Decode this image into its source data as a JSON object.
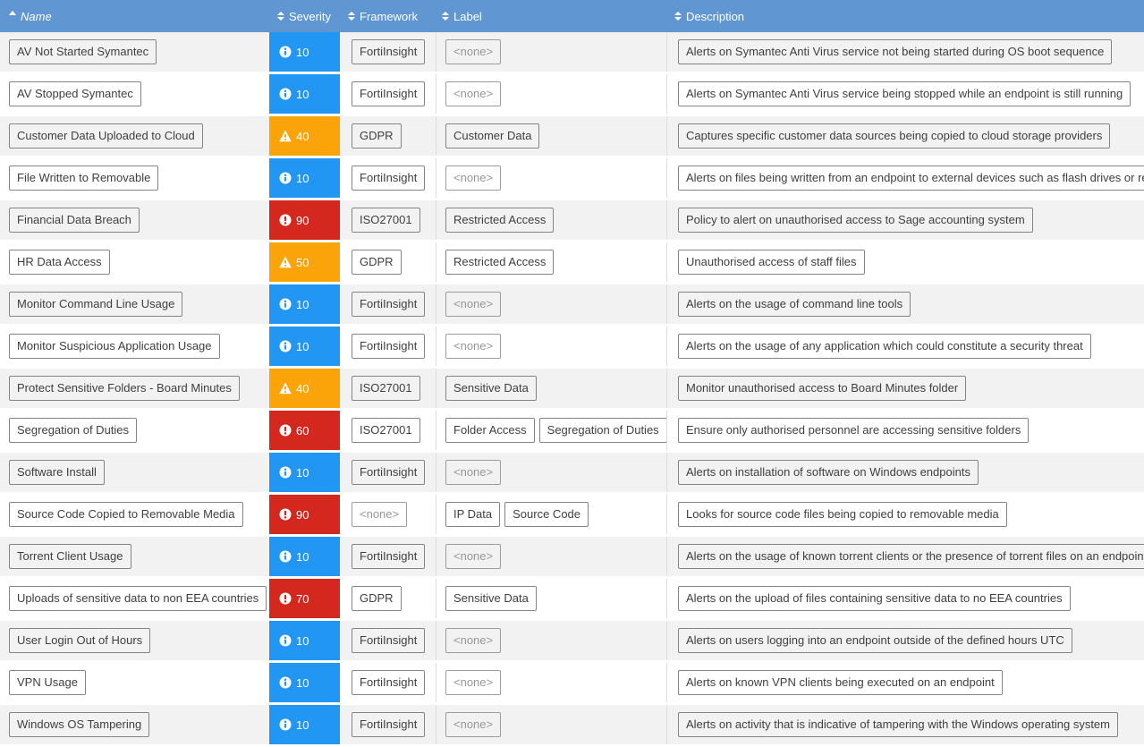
{
  "colors": {
    "header_bg": "#6097d2",
    "severity_info": "#2196f3",
    "severity_warning": "#fba40a",
    "severity_critical": "#d4271e",
    "row_alt_bg": "#f2f2f2",
    "row_bg": "#ffffff"
  },
  "icons": {
    "info": "info-circle-icon",
    "warning": "warning-triangle-icon",
    "critical": "exclamation-circle-icon",
    "sortable": "sort-icon",
    "sorted_asc": "caret-up-icon"
  },
  "table": {
    "none_placeholder": "<none>",
    "columns": [
      {
        "key": "name",
        "label": "Name",
        "sorted": "asc"
      },
      {
        "key": "severity",
        "label": "Severity"
      },
      {
        "key": "framework",
        "label": "Framework"
      },
      {
        "key": "label",
        "label": "Label"
      },
      {
        "key": "description",
        "label": "Description"
      }
    ],
    "rows": [
      {
        "name": "AV Not Started Symantec",
        "severity": {
          "value": 10,
          "level": "info"
        },
        "framework": "FortiInsight",
        "labels": [],
        "description": "Alerts on Symantec Anti Virus service not being started during OS boot sequence"
      },
      {
        "name": "AV Stopped Symantec",
        "severity": {
          "value": 10,
          "level": "info"
        },
        "framework": "FortiInsight",
        "labels": [],
        "description": "Alerts on Symantec Anti Virus service being stopped while an endpoint is still running"
      },
      {
        "name": "Customer Data Uploaded to Cloud",
        "severity": {
          "value": 40,
          "level": "warning"
        },
        "framework": "GDPR",
        "labels": [
          "Customer Data"
        ],
        "description": "Captures specific customer data sources being copied to cloud storage providers"
      },
      {
        "name": "File Written to Removable",
        "severity": {
          "value": 10,
          "level": "info"
        },
        "framework": "FortiInsight",
        "labels": [],
        "description": "Alerts on files being written from an endpoint to external devices such as flash drives or removable media"
      },
      {
        "name": "Financial Data Breach",
        "severity": {
          "value": 90,
          "level": "critical"
        },
        "framework": "ISO27001",
        "labels": [
          "Restricted Access"
        ],
        "description": "Policy to alert on unauthorised access to Sage accounting system"
      },
      {
        "name": "HR Data Access",
        "severity": {
          "value": 50,
          "level": "warning"
        },
        "framework": "GDPR",
        "labels": [
          "Restricted Access"
        ],
        "description": "Unauthorised access of staff files"
      },
      {
        "name": "Monitor Command Line Usage",
        "severity": {
          "value": 10,
          "level": "info"
        },
        "framework": "FortiInsight",
        "labels": [],
        "description": "Alerts on the usage of command line tools"
      },
      {
        "name": "Monitor Suspicious Application Usage",
        "severity": {
          "value": 10,
          "level": "info"
        },
        "framework": "FortiInsight",
        "labels": [],
        "description": "Alerts on the usage of any application which could constitute a security threat"
      },
      {
        "name": "Protect Sensitive Folders - Board Minutes",
        "severity": {
          "value": 40,
          "level": "warning"
        },
        "framework": "ISO27001",
        "labels": [
          "Sensitive Data"
        ],
        "description": "Monitor unauthorised access to Board Minutes folder"
      },
      {
        "name": "Segregation of Duties",
        "severity": {
          "value": 60,
          "level": "critical"
        },
        "framework": "ISO27001",
        "labels": [
          "Folder Access",
          "Segregation of Duties"
        ],
        "description": "Ensure only authorised personnel are accessing sensitive folders"
      },
      {
        "name": "Software Install",
        "severity": {
          "value": 10,
          "level": "info"
        },
        "framework": "FortiInsight",
        "labels": [],
        "description": "Alerts on installation of software on Windows endpoints"
      },
      {
        "name": "Source Code Copied to Removable Media",
        "severity": {
          "value": 90,
          "level": "critical"
        },
        "framework": null,
        "labels": [
          "IP Data",
          "Source Code"
        ],
        "description": "Looks for source code files being copied to removable media"
      },
      {
        "name": "Torrent Client Usage",
        "severity": {
          "value": 10,
          "level": "info"
        },
        "framework": "FortiInsight",
        "labels": [],
        "description": "Alerts on the usage of known torrent clients or the presence of torrent files on an endpoint"
      },
      {
        "name": "Uploads of sensitive data to non EEA countries",
        "severity": {
          "value": 70,
          "level": "critical"
        },
        "framework": "GDPR",
        "labels": [
          "Sensitive Data"
        ],
        "description": "Alerts on the upload of files containing sensitive data to no EEA countries"
      },
      {
        "name": "User Login Out of Hours",
        "severity": {
          "value": 10,
          "level": "info"
        },
        "framework": "FortiInsight",
        "labels": [],
        "description": "Alerts on users logging into an endpoint outside of the defined hours UTC"
      },
      {
        "name": "VPN Usage",
        "severity": {
          "value": 10,
          "level": "info"
        },
        "framework": "FortiInsight",
        "labels": [],
        "description": "Alerts on known VPN clients being executed on an endpoint"
      },
      {
        "name": "Windows OS Tampering",
        "severity": {
          "value": 10,
          "level": "info"
        },
        "framework": "FortiInsight",
        "labels": [],
        "description": "Alerts on activity that is indicative of tampering with the Windows operating system"
      }
    ]
  }
}
